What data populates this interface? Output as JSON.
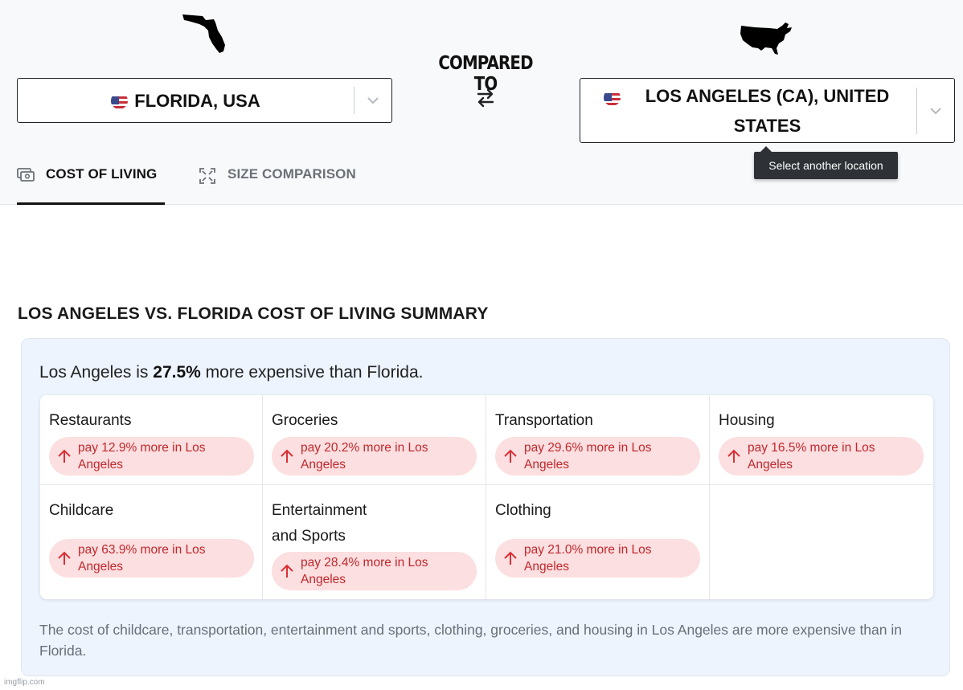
{
  "header": {
    "compared_to": "COMPARED TO",
    "left_location": {
      "label": "FLORIDA, USA",
      "icon": "us-flag-icon",
      "silhouette": "florida-silhouette-icon"
    },
    "right_location": {
      "label": "LOS ANGELES (CA), UNITED STATES",
      "icon": "us-flag-icon",
      "silhouette": "usa-silhouette-icon"
    },
    "tooltip": "Select another location"
  },
  "tabs": [
    {
      "label": "COST OF LIVING",
      "icon": "money-icon",
      "active": true
    },
    {
      "label": "SIZE COMPARISON",
      "icon": "expand-icon",
      "active": false
    }
  ],
  "summary": {
    "title": "LOS ANGELES VS. FLORIDA COST OF LIVING SUMMARY",
    "lead_prefix": "Los Angeles is ",
    "lead_percent": "27.5%",
    "lead_suffix": " more expensive than Florida.",
    "categories": [
      {
        "name": "Restaurants",
        "text": "pay 12.9% more in Los Angeles"
      },
      {
        "name": "Groceries",
        "text": "pay 20.2% more in Los Angeles"
      },
      {
        "name": "Transportation",
        "text": "pay 29.6% more in Los Angeles"
      },
      {
        "name": "Housing",
        "text": "pay 16.5% more in Los Angeles"
      },
      {
        "name": "Childcare",
        "text": "pay 63.9% more in Los Angeles"
      },
      {
        "name": "Entertainment and Sports",
        "text": "pay 28.4% more in Los Angeles"
      },
      {
        "name": "Clothing",
        "text": "pay 21.0% more in Los Angeles"
      }
    ],
    "footnote": "The cost of childcare, transportation, entertainment and sports, clothing, groceries, and housing in Los Angeles are more expensive than in Florida."
  },
  "colors": {
    "pill_bg": "#fcdfe0",
    "pill_text": "#c0282d",
    "card_bg": "#edf4fe",
    "tooltip_bg": "#2e3135"
  },
  "watermark": "imgflip.com"
}
